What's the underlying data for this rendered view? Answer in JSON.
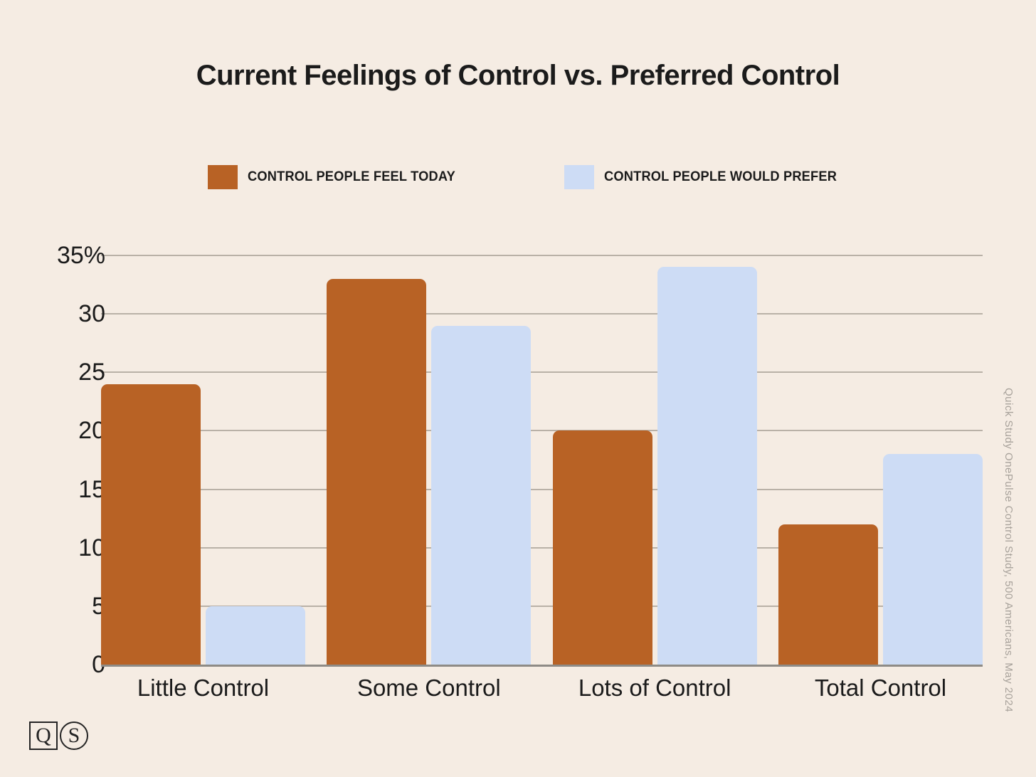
{
  "title": "Current Feelings of Control vs. Preferred Control",
  "legend": {
    "items": [
      {
        "label": "CONTROL PEOPLE FEEL TODAY",
        "color": "#B86225"
      },
      {
        "label": "CONTROL PEOPLE WOULD PREFER",
        "color": "#CDDCF5"
      }
    ]
  },
  "chart_data": {
    "type": "bar",
    "title": "Current Feelings of Control vs. Preferred Control",
    "categories": [
      "Little Control",
      "Some Control",
      "Lots of Control",
      "Total Control"
    ],
    "series": [
      {
        "name": "CONTROL PEOPLE FEEL TODAY",
        "color": "#B86225",
        "values": [
          24,
          33,
          20,
          12
        ]
      },
      {
        "name": "CONTROL PEOPLE WOULD PREFER",
        "color": "#CDDCF5",
        "values": [
          5,
          29,
          34,
          18
        ]
      }
    ],
    "xlabel": "",
    "ylabel": "",
    "ylim": [
      0,
      35
    ],
    "ytick_values": [
      0,
      5,
      10,
      15,
      20,
      25,
      30,
      35
    ],
    "ytick_labels": [
      "0",
      "5",
      "10",
      "15",
      "20",
      "25",
      "30",
      "35%"
    ],
    "grid": true,
    "legend_position": "top"
  },
  "side_note": "Quick Study OnePulse Control Study, 500 Americans, May 2024",
  "logo": {
    "q": "Q",
    "s": "S"
  },
  "colors": {
    "background": "#F5ECE3",
    "bar_feel_today": "#B86225",
    "bar_would_prefer": "#CDDCF5",
    "gridline": "#B9B1A7",
    "axis_line": "#8E8B86",
    "text": "#1B1B1B",
    "side_note": "#A8A29B"
  }
}
